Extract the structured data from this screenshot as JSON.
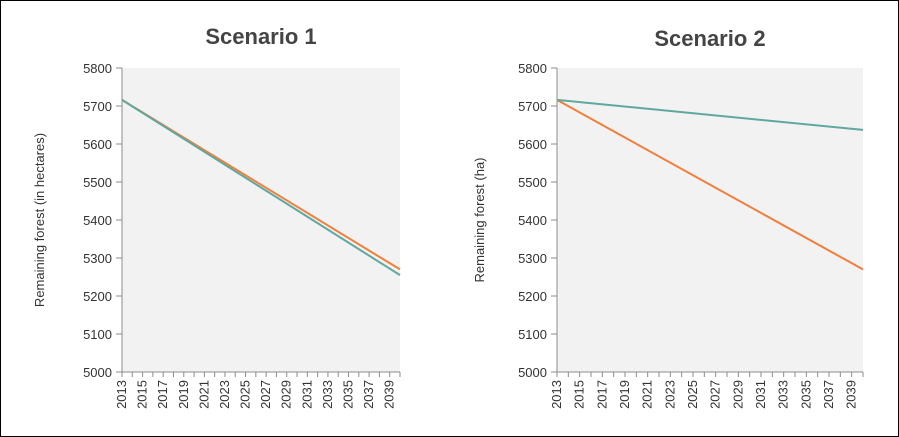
{
  "chart_data": [
    {
      "type": "line",
      "title": "Scenario 1",
      "xlabel": "",
      "ylabel": "Remaining forest (in hectares)",
      "x_ticks": [
        "2013",
        "2015",
        "2017",
        "2019",
        "2021",
        "2023",
        "2025",
        "2027",
        "2029",
        "2031",
        "2033",
        "2035",
        "2037",
        "2039"
      ],
      "xlim": [
        2013,
        2040
      ],
      "ylim": [
        5000,
        5800
      ],
      "y_ticks": [
        5000,
        5100,
        5200,
        5300,
        5400,
        5500,
        5600,
        5700,
        5800
      ],
      "grid": false,
      "legend": "none",
      "series": [
        {
          "color": "#f07f3c",
          "x": [
            2013,
            2040
          ],
          "values": [
            5716,
            5270
          ]
        },
        {
          "color": "#5fa89f",
          "x": [
            2013,
            2040
          ],
          "values": [
            5716,
            5255
          ]
        }
      ]
    },
    {
      "type": "line",
      "title": "Scenario 2",
      "xlabel": "",
      "ylabel": "Remaining forest (ha)",
      "x_ticks": [
        "2013",
        "2015",
        "2017",
        "2019",
        "2021",
        "2023",
        "2025",
        "2027",
        "2029",
        "2031",
        "2033",
        "2035",
        "2037",
        "2039"
      ],
      "xlim": [
        2013,
        2040
      ],
      "ylim": [
        5000,
        5800
      ],
      "y_ticks": [
        5000,
        5100,
        5200,
        5300,
        5400,
        5500,
        5600,
        5700,
        5800
      ],
      "grid": false,
      "legend": "none",
      "series": [
        {
          "color": "#f07f3c",
          "x": [
            2013,
            2040
          ],
          "values": [
            5716,
            5270
          ]
        },
        {
          "color": "#5fa89f",
          "x": [
            2013,
            2040
          ],
          "values": [
            5716,
            5637
          ]
        }
      ]
    }
  ],
  "colors": {
    "plot_background": "#f2f2f2",
    "axis": "#8c8c8c"
  }
}
